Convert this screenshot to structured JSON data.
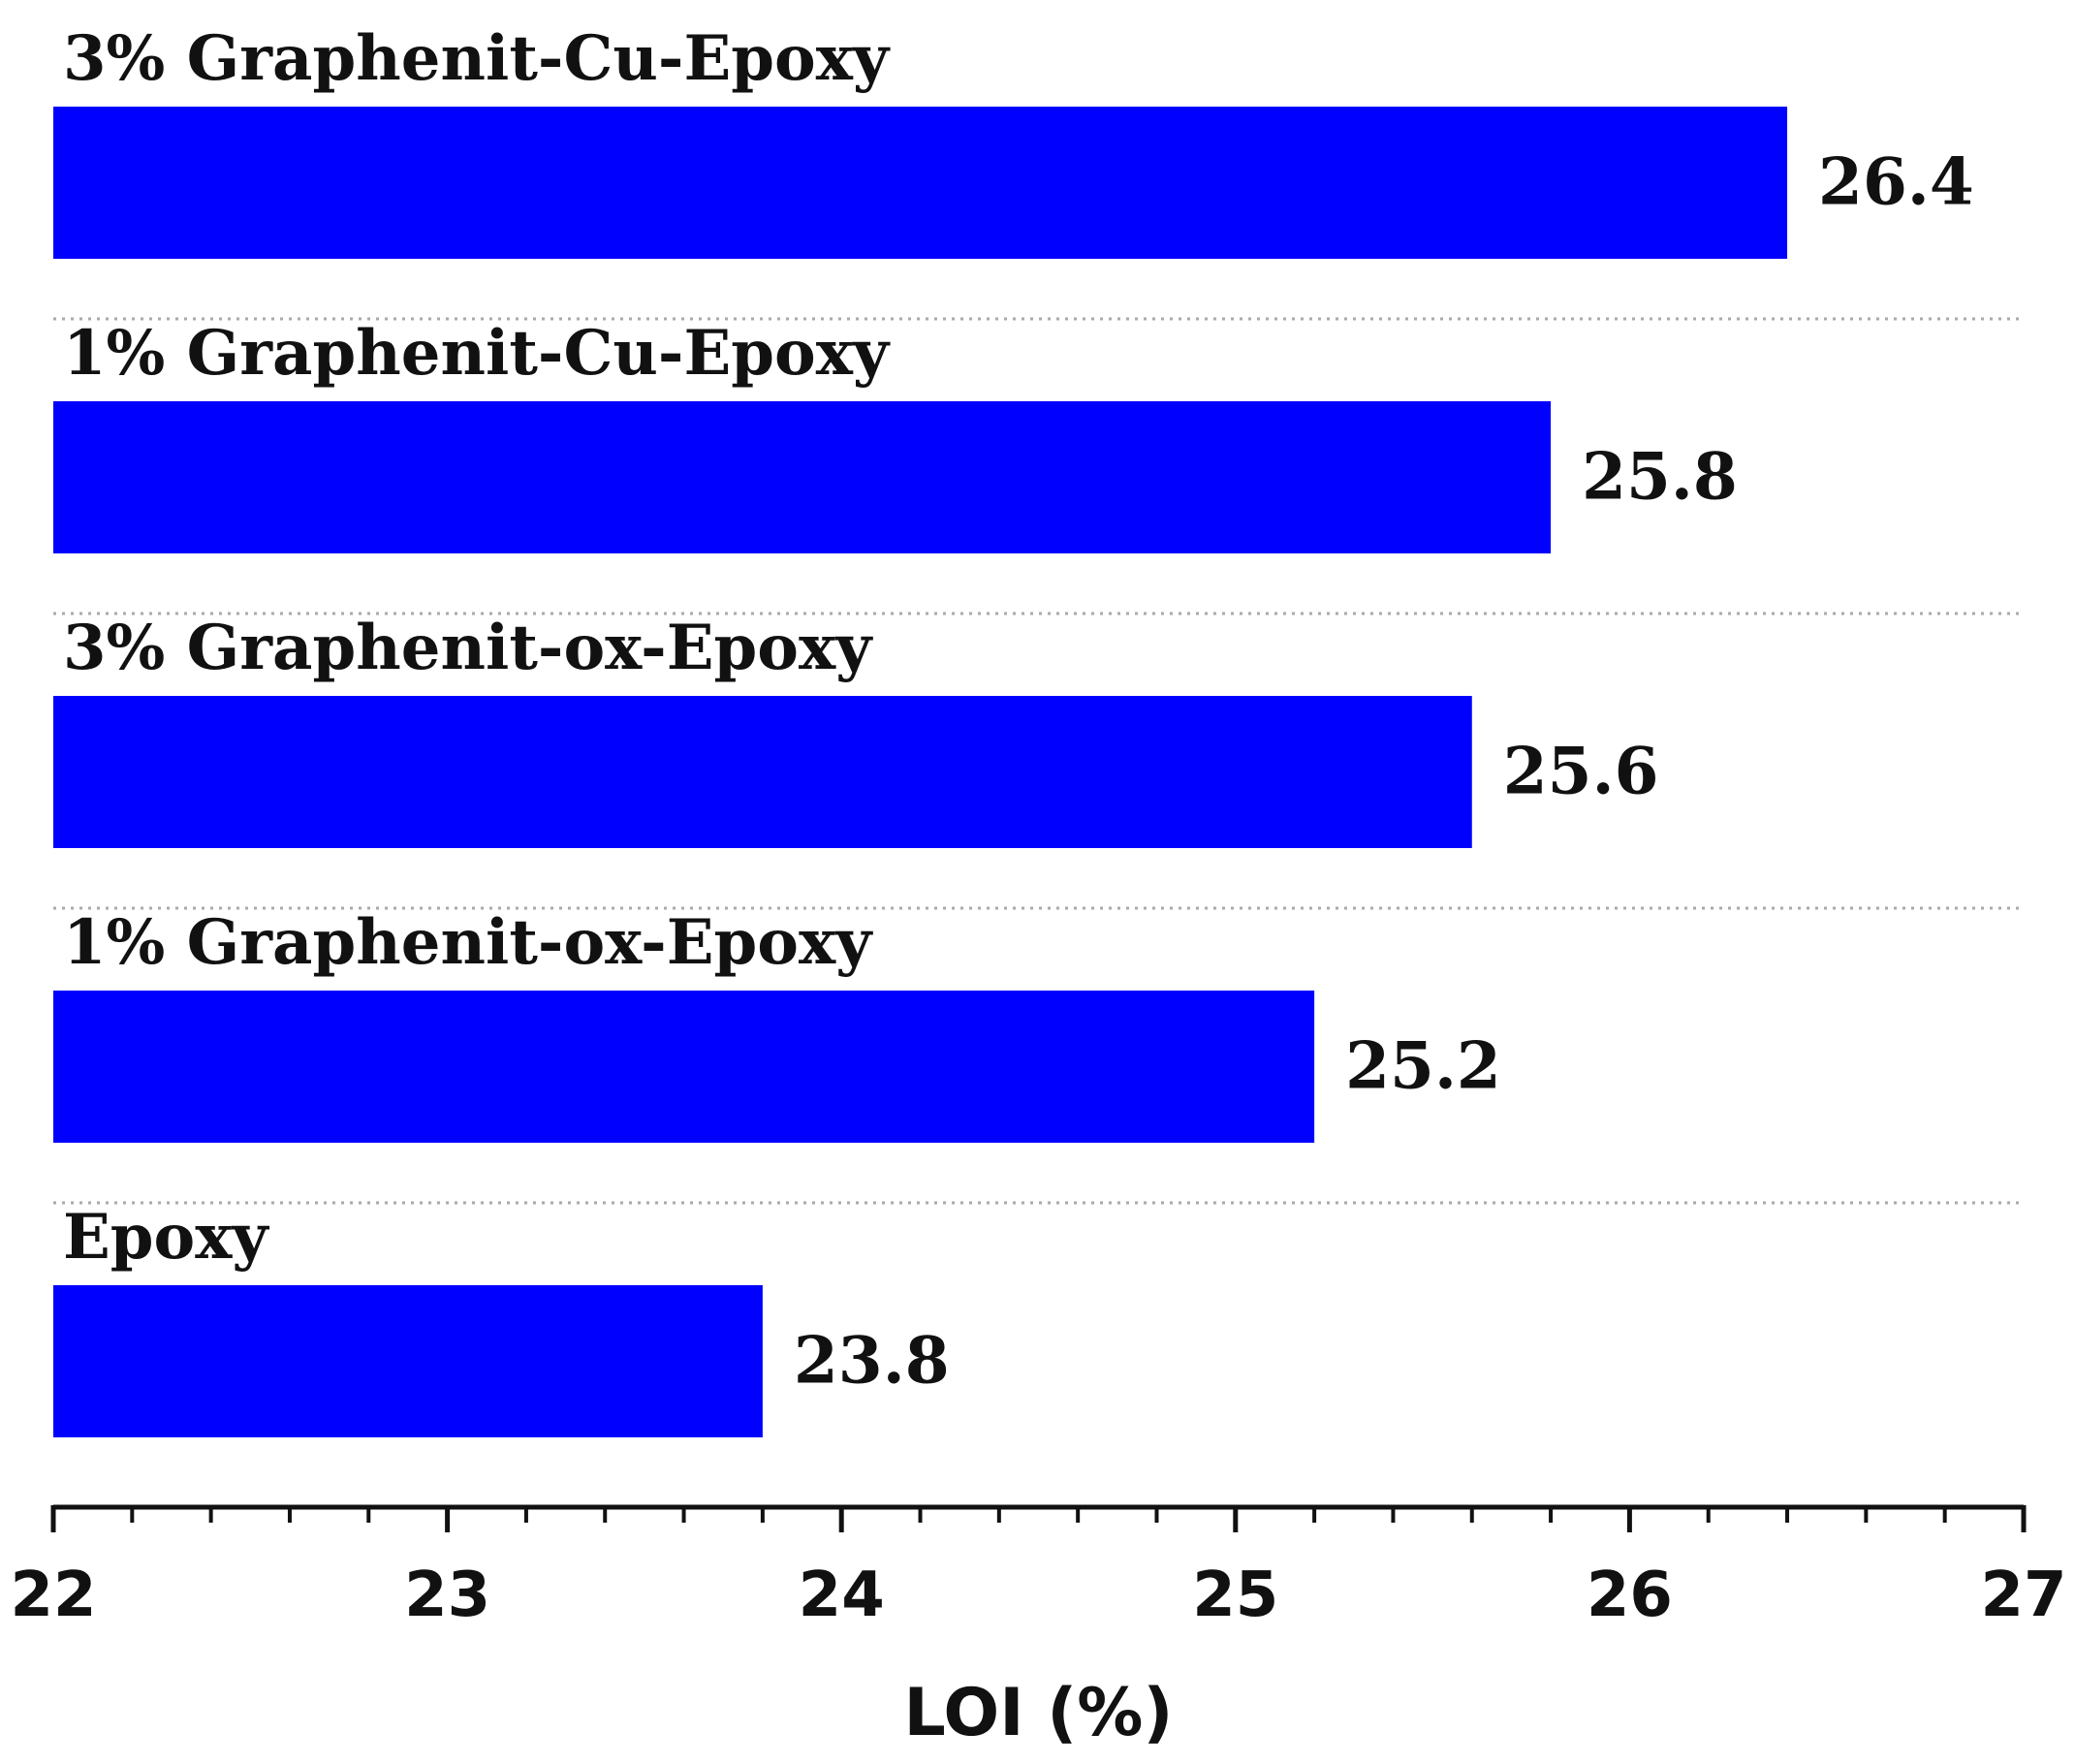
{
  "chart_data": {
    "type": "bar",
    "orientation": "horizontal",
    "categories": [
      "3% Graphenit-Cu-Epoxy",
      "1% Graphenit-Cu-Epoxy",
      "3% Graphenit-ox-Epoxy",
      "1% Graphenit-ox-Epoxy",
      "Epoxy"
    ],
    "values": [
      26.4,
      25.8,
      25.6,
      25.2,
      23.8
    ],
    "value_labels": [
      "26.4",
      "25.8",
      "25.6",
      "25.2",
      "23.8"
    ],
    "xlabel": "LOI (%)",
    "ylabel": "",
    "xlim": [
      22,
      27
    ],
    "xticks": [
      "22",
      "23",
      "24",
      "25",
      "26",
      "27"
    ],
    "minor_ticks_per_major": 5,
    "grid": "dotted horizontal separators between bars",
    "legend": "none",
    "bar_color": "#0000ff"
  }
}
